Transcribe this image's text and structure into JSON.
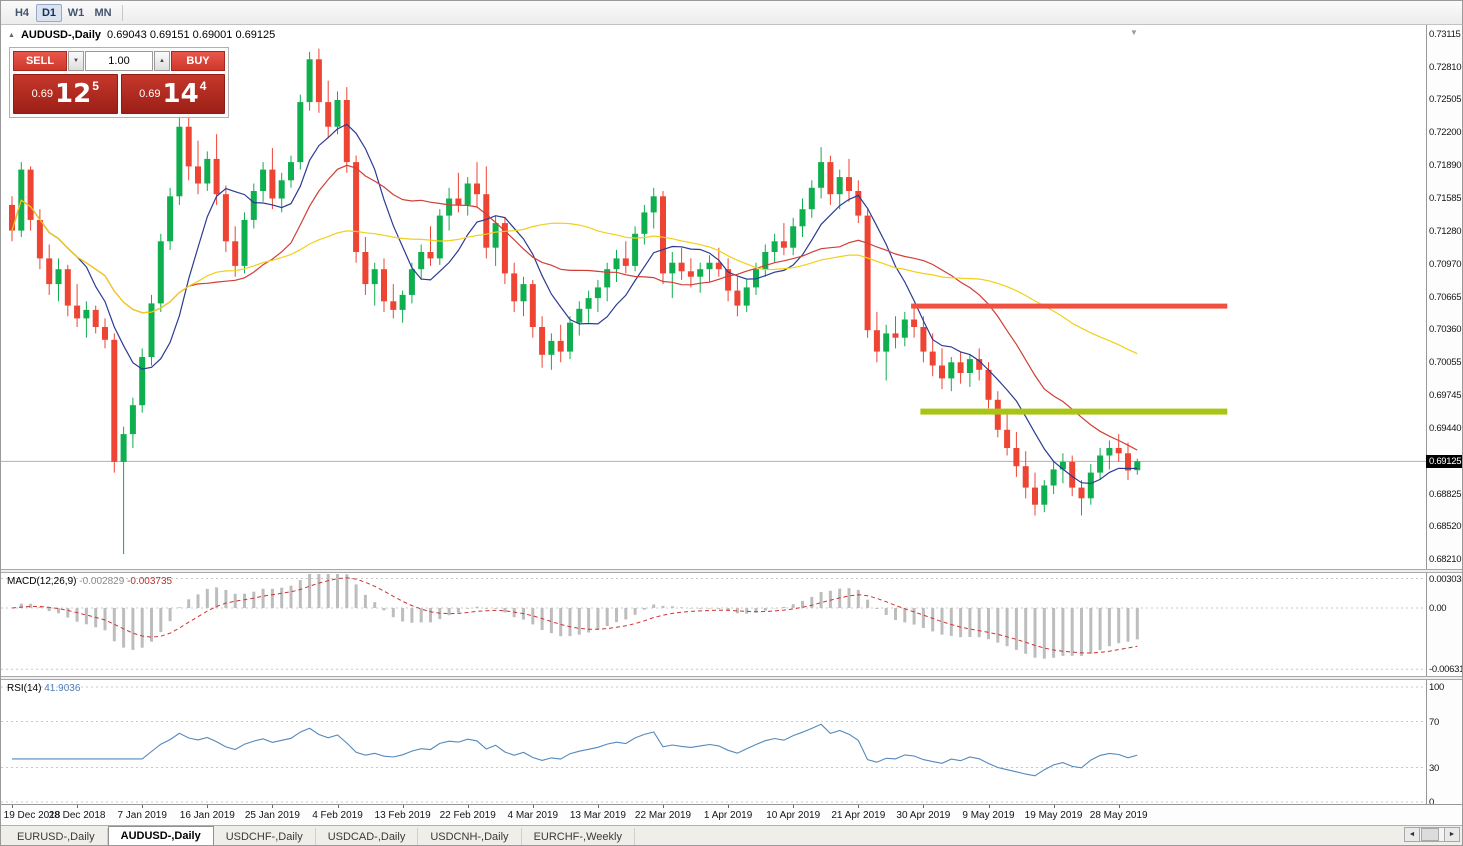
{
  "toolbar": {
    "timeframes": [
      {
        "label": "H4",
        "active": false
      },
      {
        "label": "D1",
        "active": true
      },
      {
        "label": "W1",
        "active": false
      },
      {
        "label": "MN",
        "active": false
      }
    ]
  },
  "header": {
    "symbol": "AUDUSD-,Daily",
    "ohlc": "0.69043 0.69151 0.69001 0.69125"
  },
  "trade_panel": {
    "sell_label": "SELL",
    "buy_label": "BUY",
    "volume": "1.00",
    "sell_price": {
      "prefix": "0.69",
      "big": "12",
      "sup": "5"
    },
    "buy_price": {
      "prefix": "0.69",
      "big": "14",
      "sup": "4"
    }
  },
  "icons": {
    "spin_up": "▲",
    "spin_down": "▼",
    "panel_toggle": "▲",
    "end_marker": "▼",
    "scroll_left": "◄",
    "scroll_right": "►"
  },
  "colors": {
    "candle_up": "#0fae4e",
    "candle_down": "#ee4433",
    "resistance": "#f0503f",
    "support": "#a8c414",
    "macd_hist": "#bdbdbd",
    "macd_signal": "#cc3333",
    "rsi_line": "#5588bb",
    "current_price_line": "#b0b0b0"
  },
  "chart_data": {
    "type": "candlestick",
    "symbol": "AUDUSD-",
    "timeframe": "Daily",
    "last_ohlc": {
      "open": "0.69043",
      "high": "0.69151",
      "low": "0.69001",
      "close": "0.69125"
    },
    "current_price_label": "0.69125",
    "price_range": [
      0.6812,
      0.732
    ],
    "price_axis_ticks": [
      "0.73115",
      "0.72810",
      "0.72505",
      "0.72200",
      "0.71890",
      "0.71585",
      "0.71280",
      "0.70970",
      "0.70665",
      "0.70360",
      "0.70055",
      "0.69745",
      "0.69440",
      "0.68825",
      "0.68520",
      "0.68210"
    ],
    "x_labels": [
      "19 Dec 2018",
      "28 Dec 2018",
      "7 Jan 2019",
      "16 Jan 2019",
      "25 Jan 2019",
      "4 Feb 2019",
      "13 Feb 2019",
      "22 Feb 2019",
      "4 Mar 2019",
      "13 Mar 2019",
      "22 Mar 2019",
      "1 Apr 2019",
      "10 Apr 2019",
      "21 Apr 2019",
      "30 Apr 2019",
      "9 May 2019",
      "19 May 2019",
      "28 May 2019"
    ],
    "label_step": 7,
    "moving_averages": [
      {
        "period": 8,
        "color": "#2c3a94"
      },
      {
        "period": 20,
        "color": "#cf3f35"
      },
      {
        "period": 45,
        "color": "#f0d018"
      }
    ],
    "overlays": {
      "resistance_line": {
        "price": 0.7058,
        "start_index": 97,
        "end_index": 131,
        "color": "#f0503f"
      },
      "support_line": {
        "price": 0.6959,
        "start_index": 98,
        "end_index": 131,
        "color": "#a8c414"
      }
    },
    "indicators": [
      {
        "type": "macd",
        "label": "MACD(12,26,9)",
        "value": "-0.002829",
        "signal_value": "-0.003735",
        "range": [
          -0.007,
          0.0036
        ],
        "axis_ticks": [
          {
            "label": "0.003035",
            "value": 0.003035
          },
          {
            "label": "0.00",
            "value": 0
          },
          {
            "label": "-0.006311",
            "value": -0.006311
          }
        ]
      },
      {
        "type": "rsi",
        "label": "RSI(14)",
        "value": "41.9036",
        "levels": [
          70,
          30
        ],
        "axis_ticks": [
          {
            "label": "100",
            "value": 100
          },
          {
            "label": "70",
            "value": 70
          },
          {
            "label": "30",
            "value": 30
          },
          {
            "label": "0",
            "value": 0
          }
        ]
      }
    ],
    "candles": [
      [
        0.7152,
        0.716,
        0.7118,
        0.7128
      ],
      [
        0.7128,
        0.7192,
        0.7122,
        0.7185
      ],
      [
        0.7185,
        0.7188,
        0.7128,
        0.7138
      ],
      [
        0.7138,
        0.7148,
        0.7092,
        0.7102
      ],
      [
        0.7102,
        0.7115,
        0.7068,
        0.7078
      ],
      [
        0.7078,
        0.7102,
        0.7062,
        0.7092
      ],
      [
        0.7092,
        0.7096,
        0.7048,
        0.7058
      ],
      [
        0.7058,
        0.7078,
        0.7038,
        0.7046
      ],
      [
        0.7046,
        0.7062,
        0.7028,
        0.7054
      ],
      [
        0.7054,
        0.7058,
        0.7032,
        0.7038
      ],
      [
        0.7038,
        0.7046,
        0.7018,
        0.7026
      ],
      [
        0.7026,
        0.7032,
        0.6902,
        0.6912
      ],
      [
        0.6912,
        0.6945,
        0.6826,
        0.6938
      ],
      [
        0.6938,
        0.6972,
        0.6925,
        0.6965
      ],
      [
        0.6965,
        0.7018,
        0.6958,
        0.701
      ],
      [
        0.701,
        0.7068,
        0.7002,
        0.706
      ],
      [
        0.706,
        0.7125,
        0.7052,
        0.7118
      ],
      [
        0.7118,
        0.7168,
        0.711,
        0.716
      ],
      [
        0.716,
        0.7235,
        0.7152,
        0.7225
      ],
      [
        0.7225,
        0.724,
        0.7175,
        0.7188
      ],
      [
        0.7188,
        0.7212,
        0.7162,
        0.7172
      ],
      [
        0.7172,
        0.7202,
        0.7165,
        0.7195
      ],
      [
        0.7195,
        0.7218,
        0.7152,
        0.7162
      ],
      [
        0.7162,
        0.717,
        0.7108,
        0.7118
      ],
      [
        0.7118,
        0.7132,
        0.7085,
        0.7095
      ],
      [
        0.7095,
        0.7145,
        0.7088,
        0.7138
      ],
      [
        0.7138,
        0.7172,
        0.713,
        0.7165
      ],
      [
        0.7165,
        0.7192,
        0.7155,
        0.7185
      ],
      [
        0.7185,
        0.7205,
        0.7148,
        0.7158
      ],
      [
        0.7158,
        0.7182,
        0.7145,
        0.7175
      ],
      [
        0.7175,
        0.7198,
        0.7168,
        0.7192
      ],
      [
        0.7192,
        0.7255,
        0.7185,
        0.7248
      ],
      [
        0.7248,
        0.7295,
        0.724,
        0.7288
      ],
      [
        0.7288,
        0.7298,
        0.7238,
        0.7248
      ],
      [
        0.7248,
        0.7268,
        0.7215,
        0.7225
      ],
      [
        0.7225,
        0.7258,
        0.7218,
        0.725
      ],
      [
        0.725,
        0.7262,
        0.7182,
        0.7192
      ],
      [
        0.7192,
        0.7198,
        0.7098,
        0.7108
      ],
      [
        0.7108,
        0.7122,
        0.7068,
        0.7078
      ],
      [
        0.7078,
        0.7098,
        0.7058,
        0.7092
      ],
      [
        0.7092,
        0.7102,
        0.7052,
        0.7062
      ],
      [
        0.7062,
        0.7078,
        0.7046,
        0.7054
      ],
      [
        0.7054,
        0.7072,
        0.7042,
        0.7068
      ],
      [
        0.7068,
        0.7098,
        0.706,
        0.7092
      ],
      [
        0.7092,
        0.7115,
        0.7082,
        0.7108
      ],
      [
        0.7108,
        0.7132,
        0.7095,
        0.7102
      ],
      [
        0.7102,
        0.7148,
        0.7096,
        0.7142
      ],
      [
        0.7142,
        0.7168,
        0.7128,
        0.7158
      ],
      [
        0.7158,
        0.7182,
        0.7145,
        0.7152
      ],
      [
        0.7152,
        0.7178,
        0.7142,
        0.7172
      ],
      [
        0.7172,
        0.7192,
        0.715,
        0.7162
      ],
      [
        0.7162,
        0.7188,
        0.7102,
        0.7112
      ],
      [
        0.7112,
        0.7142,
        0.7095,
        0.7135
      ],
      [
        0.7135,
        0.714,
        0.7078,
        0.7088
      ],
      [
        0.7088,
        0.7098,
        0.7052,
        0.7062
      ],
      [
        0.7062,
        0.7085,
        0.7048,
        0.7078
      ],
      [
        0.7078,
        0.7082,
        0.7028,
        0.7038
      ],
      [
        0.7038,
        0.7048,
        0.7,
        0.7012
      ],
      [
        0.7012,
        0.7032,
        0.6998,
        0.7025
      ],
      [
        0.7025,
        0.704,
        0.7005,
        0.7015
      ],
      [
        0.7015,
        0.7048,
        0.7008,
        0.7042
      ],
      [
        0.7042,
        0.7062,
        0.703,
        0.7055
      ],
      [
        0.7055,
        0.7072,
        0.7042,
        0.7065
      ],
      [
        0.7065,
        0.7082,
        0.7052,
        0.7075
      ],
      [
        0.7075,
        0.7098,
        0.7062,
        0.7092
      ],
      [
        0.7092,
        0.711,
        0.708,
        0.7102
      ],
      [
        0.7102,
        0.7118,
        0.7088,
        0.7095
      ],
      [
        0.7095,
        0.7132,
        0.709,
        0.7125
      ],
      [
        0.7125,
        0.7152,
        0.7115,
        0.7145
      ],
      [
        0.7145,
        0.7168,
        0.713,
        0.716
      ],
      [
        0.716,
        0.7165,
        0.7078,
        0.7088
      ],
      [
        0.7088,
        0.7108,
        0.7065,
        0.7098
      ],
      [
        0.7098,
        0.7112,
        0.7082,
        0.709
      ],
      [
        0.709,
        0.7102,
        0.7075,
        0.7085
      ],
      [
        0.7085,
        0.7098,
        0.707,
        0.7092
      ],
      [
        0.7092,
        0.7105,
        0.708,
        0.7098
      ],
      [
        0.7098,
        0.7112,
        0.7085,
        0.7092
      ],
      [
        0.7092,
        0.7102,
        0.7062,
        0.7072
      ],
      [
        0.7072,
        0.7085,
        0.7048,
        0.7058
      ],
      [
        0.7058,
        0.7082,
        0.7052,
        0.7075
      ],
      [
        0.7075,
        0.7098,
        0.7068,
        0.7092
      ],
      [
        0.7092,
        0.7115,
        0.7085,
        0.7108
      ],
      [
        0.7108,
        0.7125,
        0.7098,
        0.7118
      ],
      [
        0.7118,
        0.7135,
        0.7105,
        0.7112
      ],
      [
        0.7112,
        0.714,
        0.7105,
        0.7132
      ],
      [
        0.7132,
        0.7158,
        0.7122,
        0.7148
      ],
      [
        0.7148,
        0.7175,
        0.714,
        0.7168
      ],
      [
        0.7168,
        0.7206,
        0.7158,
        0.7192
      ],
      [
        0.7192,
        0.7198,
        0.7152,
        0.7162
      ],
      [
        0.7162,
        0.7185,
        0.7148,
        0.7178
      ],
      [
        0.7178,
        0.7195,
        0.7155,
        0.7165
      ],
      [
        0.7165,
        0.7175,
        0.7135,
        0.7142
      ],
      [
        0.7142,
        0.7148,
        0.7028,
        0.7035
      ],
      [
        0.7035,
        0.7052,
        0.7005,
        0.7015
      ],
      [
        0.7015,
        0.704,
        0.6988,
        0.7032
      ],
      [
        0.7032,
        0.7048,
        0.7018,
        0.7028
      ],
      [
        0.7028,
        0.7052,
        0.702,
        0.7045
      ],
      [
        0.7045,
        0.7058,
        0.7028,
        0.7038
      ],
      [
        0.7038,
        0.7048,
        0.7005,
        0.7015
      ],
      [
        0.7015,
        0.7032,
        0.6992,
        0.7002
      ],
      [
        0.7002,
        0.7018,
        0.698,
        0.699
      ],
      [
        0.699,
        0.701,
        0.6978,
        0.7005
      ],
      [
        0.7005,
        0.7015,
        0.6985,
        0.6995
      ],
      [
        0.6995,
        0.7012,
        0.6982,
        0.7008
      ],
      [
        0.7008,
        0.7018,
        0.6988,
        0.6998
      ],
      [
        0.6998,
        0.7005,
        0.6962,
        0.697
      ],
      [
        0.697,
        0.6978,
        0.6935,
        0.6942
      ],
      [
        0.6942,
        0.6958,
        0.6918,
        0.6925
      ],
      [
        0.6925,
        0.694,
        0.6898,
        0.6908
      ],
      [
        0.6908,
        0.6922,
        0.6878,
        0.6888
      ],
      [
        0.6888,
        0.6902,
        0.6862,
        0.6872
      ],
      [
        0.6872,
        0.6895,
        0.6865,
        0.689
      ],
      [
        0.689,
        0.6912,
        0.6882,
        0.6905
      ],
      [
        0.6905,
        0.692,
        0.6892,
        0.6912
      ],
      [
        0.6912,
        0.6918,
        0.688,
        0.6888
      ],
      [
        0.6888,
        0.6895,
        0.6862,
        0.6878
      ],
      [
        0.6878,
        0.691,
        0.6872,
        0.6902
      ],
      [
        0.6902,
        0.6925,
        0.6895,
        0.6918
      ],
      [
        0.6918,
        0.6932,
        0.6905,
        0.6925
      ],
      [
        0.6925,
        0.6938,
        0.6912,
        0.692
      ],
      [
        0.692,
        0.693,
        0.6895,
        0.6904
      ],
      [
        0.69043,
        0.69151,
        0.69001,
        0.69125
      ]
    ]
  },
  "tabs": [
    {
      "label": "EURUSD-,Daily",
      "active": false
    },
    {
      "label": "AUDUSD-,Daily",
      "active": true
    },
    {
      "label": "USDCHF-,Daily",
      "active": false
    },
    {
      "label": "USDCAD-,Daily",
      "active": false
    },
    {
      "label": "USDCNH-,Daily",
      "active": false
    },
    {
      "label": "EURCHF-,Weekly",
      "active": false
    }
  ]
}
